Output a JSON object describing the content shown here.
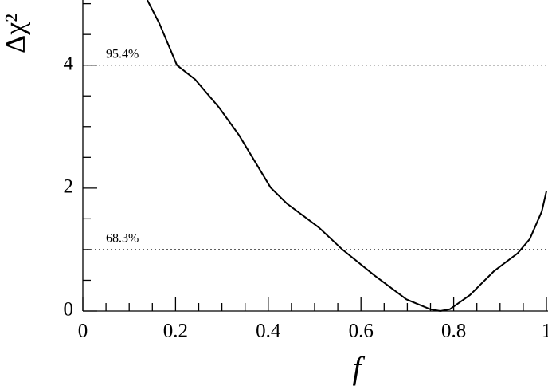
{
  "chart_data": {
    "type": "line",
    "xlabel": "f",
    "ylabel": "Δχ²",
    "xlim": [
      0,
      1
    ],
    "ylim": [
      0,
      5.06
    ],
    "xticks": [
      0,
      0.2,
      0.4,
      0.6,
      0.8,
      1
    ],
    "xminor": [
      0.05,
      0.1,
      0.15,
      0.25,
      0.3,
      0.35,
      0.45,
      0.5,
      0.55,
      0.65,
      0.7,
      0.75,
      0.85,
      0.9,
      0.95
    ],
    "yticks": [
      0,
      2,
      4
    ],
    "yminor": [
      0.5,
      1,
      1.5,
      2.5,
      3,
      3.5,
      4.5,
      5
    ],
    "annotations": [
      {
        "label": "95.4%",
        "y": 4
      },
      {
        "label": "68.3%",
        "y": 1
      }
    ],
    "series": [
      {
        "color": "#000000",
        "x": [
          0.139,
          0.165,
          0.203,
          0.242,
          0.294,
          0.337,
          0.405,
          0.44,
          0.509,
          0.56,
          0.629,
          0.698,
          0.749,
          0.771,
          0.792,
          0.835,
          0.887,
          0.938,
          0.964,
          0.99,
          1.0
        ],
        "values": [
          5.06,
          4.68,
          4.0,
          3.77,
          3.31,
          2.86,
          2.01,
          1.75,
          1.36,
          1.0,
          0.58,
          0.19,
          0.03,
          0,
          0.03,
          0.26,
          0.65,
          0.94,
          1.17,
          1.62,
          1.95
        ]
      }
    ]
  }
}
